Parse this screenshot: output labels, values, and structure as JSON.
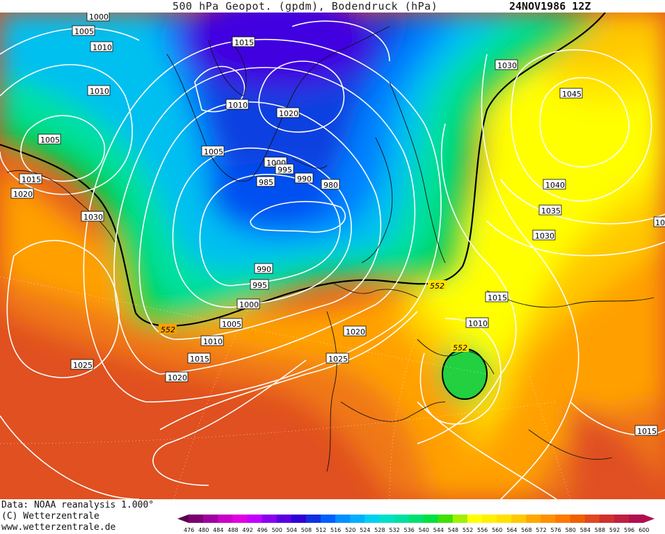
{
  "header": {
    "title": "500 hPa Geopot. (gpdm), Bodendruck (hPa)",
    "date": "24NOV1986 12Z"
  },
  "footer": {
    "data_line": "Data: NOAA reanalysis 1.000°",
    "copyright": "(C) Wetterzentrale",
    "url": "www.wetterzentrale.de"
  },
  "legend": {
    "levels": [
      "476",
      "480",
      "484",
      "488",
      "492",
      "496",
      "500",
      "504",
      "508",
      "512",
      "516",
      "520",
      "524",
      "528",
      "532",
      "536",
      "540",
      "544",
      "548",
      "552",
      "556",
      "560",
      "564",
      "568",
      "572",
      "576",
      "580",
      "584",
      "588",
      "592",
      "596",
      "600"
    ],
    "colors": [
      "#5a0050",
      "#7a0070",
      "#a000a0",
      "#c800c8",
      "#e000e0",
      "#c000ff",
      "#8a00f0",
      "#5a00e0",
      "#3000d8",
      "#1030e0",
      "#0060ff",
      "#0090ff",
      "#00b0ff",
      "#00d0f0",
      "#00e0c8",
      "#00e0a0",
      "#00e070",
      "#00e040",
      "#40e000",
      "#a0f000",
      "#ffff00",
      "#fff000",
      "#ffe000",
      "#ffc800",
      "#ffa800",
      "#ff9000",
      "#ff7800",
      "#f06000",
      "#e04820",
      "#d03030",
      "#c02040",
      "#b01050"
    ]
  },
  "map": {
    "pressure_labels": [
      {
        "text": "1000"
      },
      {
        "text": "1005"
      },
      {
        "text": "1010"
      },
      {
        "text": "1015"
      },
      {
        "text": "1010"
      },
      {
        "text": "1005"
      },
      {
        "text": "1015"
      },
      {
        "text": "1020"
      },
      {
        "text": "1030"
      },
      {
        "text": "1010"
      },
      {
        "text": "1020"
      },
      {
        "text": "1005"
      },
      {
        "text": "1000"
      },
      {
        "text": "995"
      },
      {
        "text": "990"
      },
      {
        "text": "985"
      },
      {
        "text": "980"
      },
      {
        "text": "1030"
      },
      {
        "text": "1045"
      },
      {
        "text": "1040"
      },
      {
        "text": "1035"
      },
      {
        "text": "1030"
      },
      {
        "text": "10"
      },
      {
        "text": "990"
      },
      {
        "text": "995"
      },
      {
        "text": "1000"
      },
      {
        "text": "1005"
      },
      {
        "text": "1010"
      },
      {
        "text": "1015"
      },
      {
        "text": "1020"
      },
      {
        "text": "1025"
      },
      {
        "text": "1020"
      },
      {
        "text": "1025"
      },
      {
        "text": "1015"
      },
      {
        "text": "1010"
      },
      {
        "text": "1015"
      }
    ],
    "height_labels": [
      {
        "text": "552"
      },
      {
        "text": "552"
      },
      {
        "text": "552"
      }
    ]
  }
}
